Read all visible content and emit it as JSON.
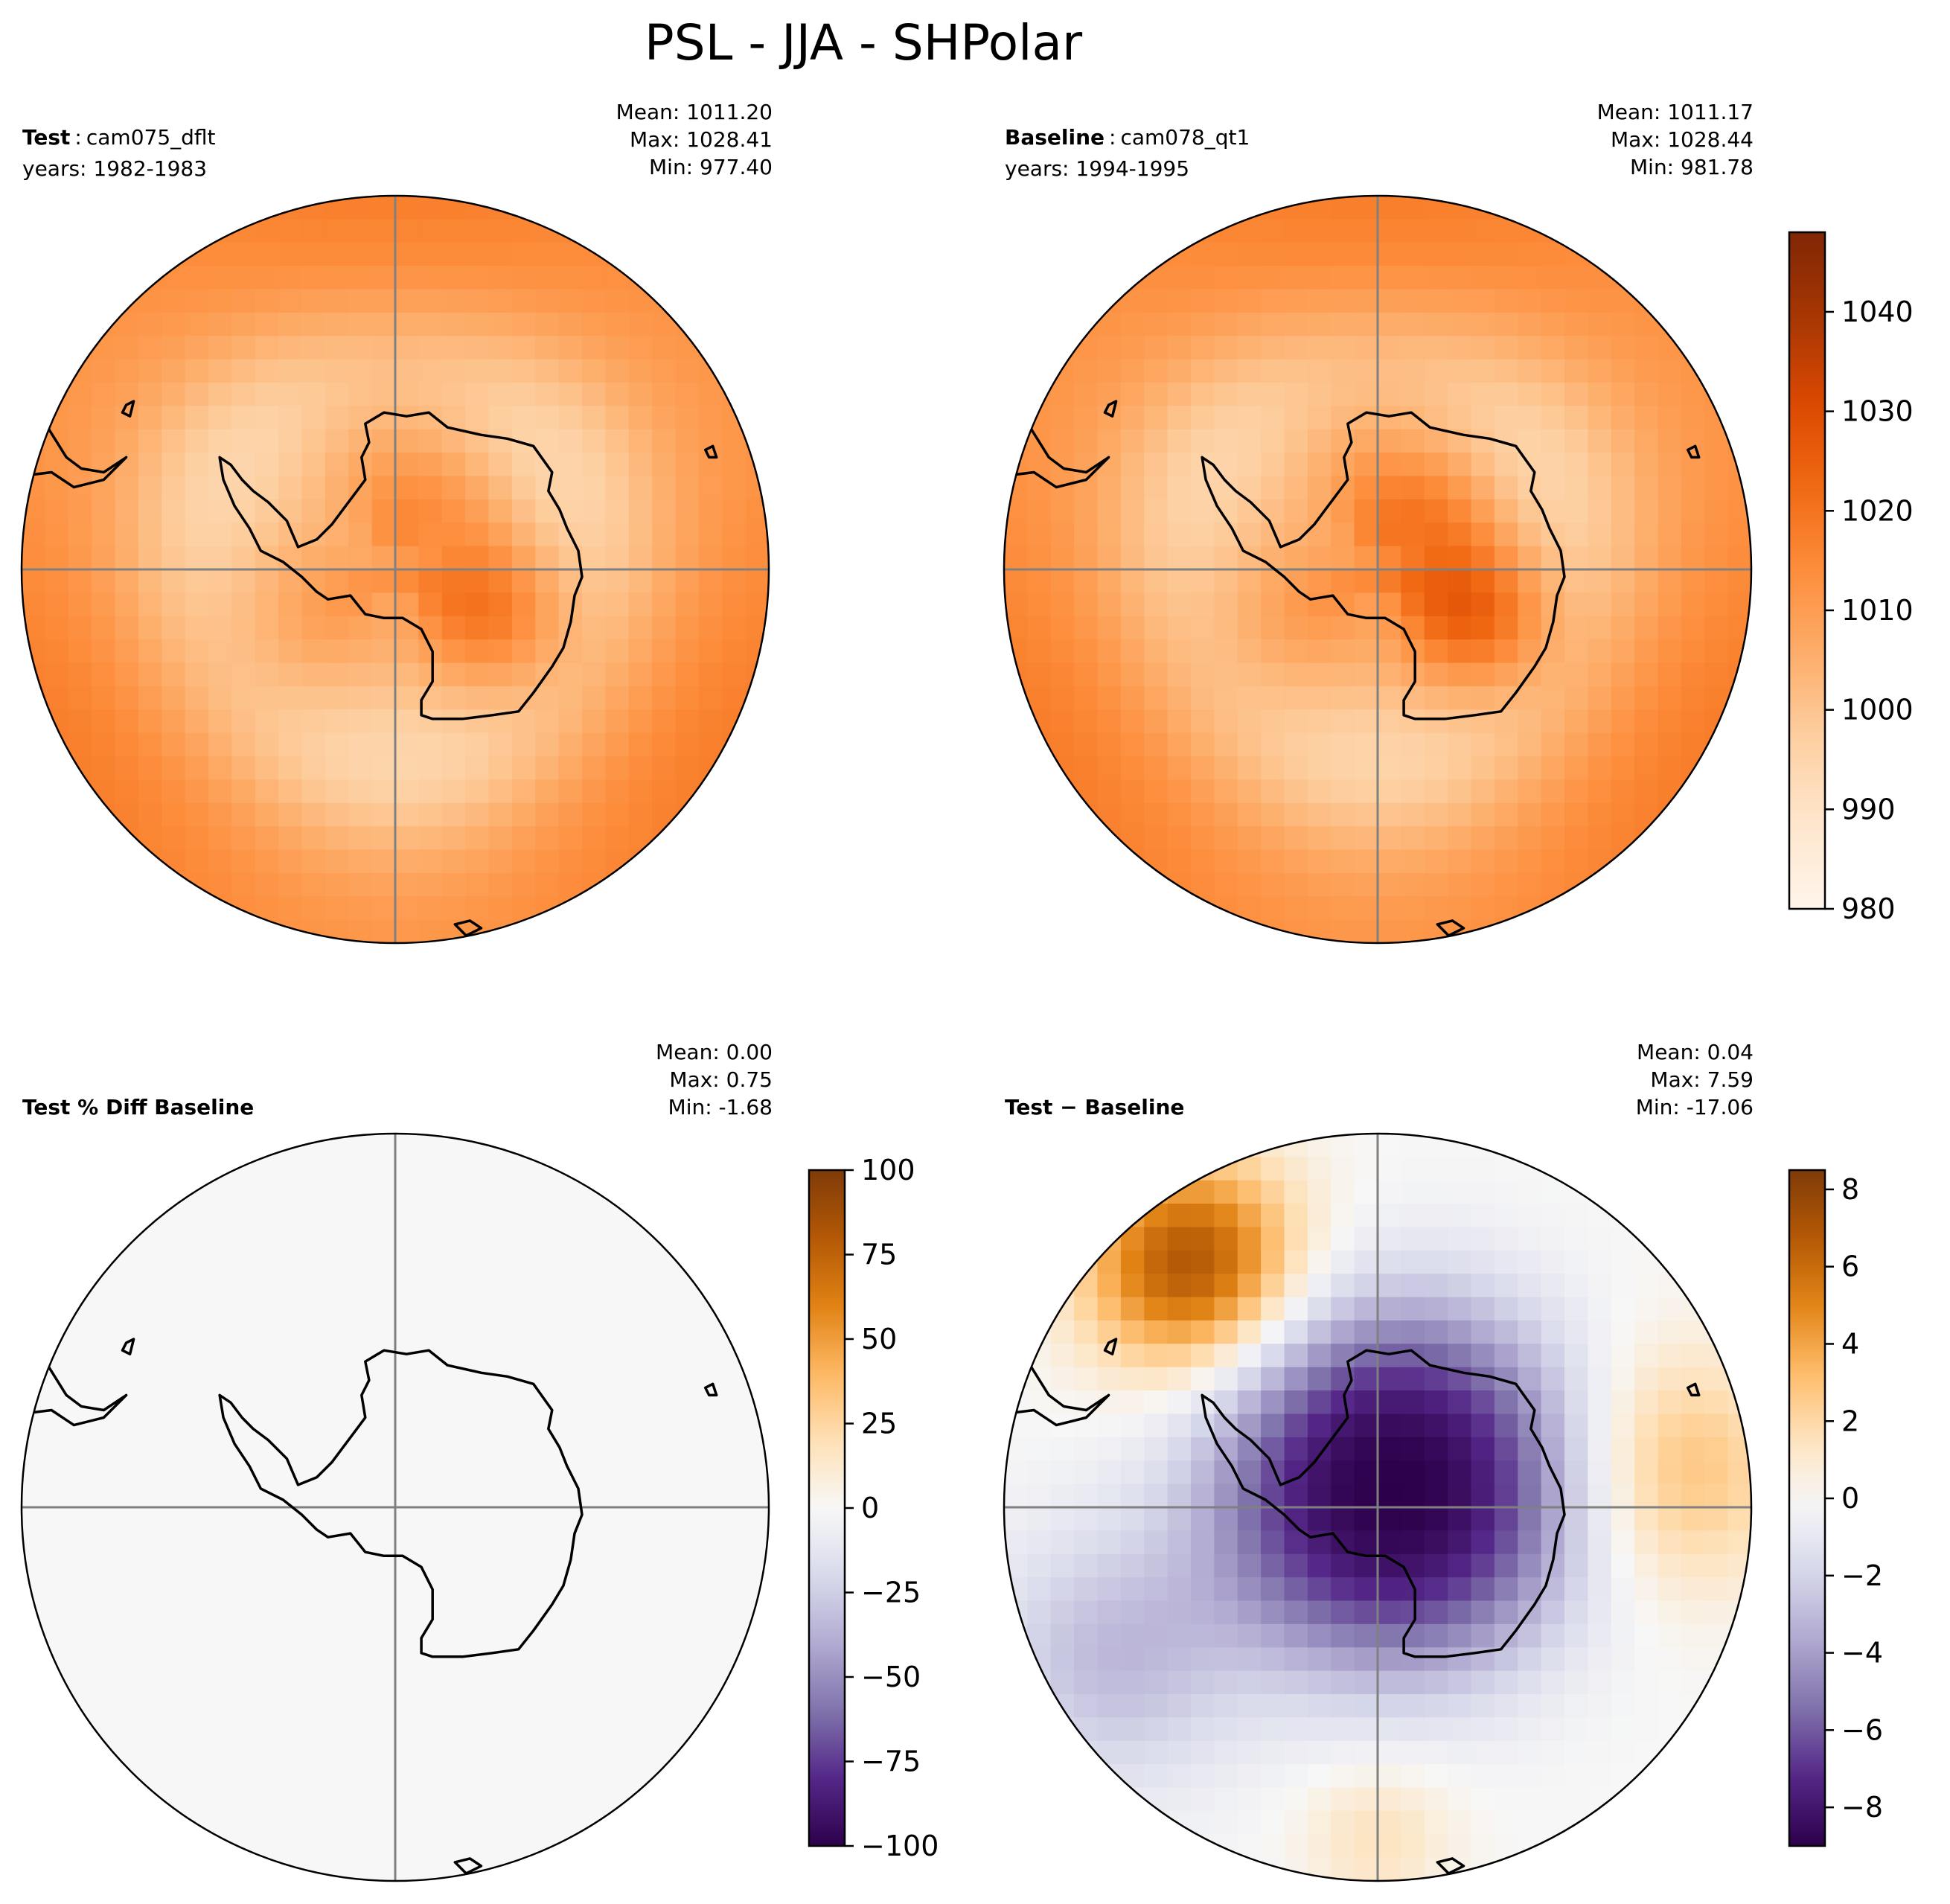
{
  "figure": {
    "title": "PSL - JJA - SHPolar"
  },
  "chart_data": [
    {
      "type": "heatmap",
      "projection": "south-polar-stereographic",
      "panel": "test",
      "label_bold": "Test",
      "case_name": "cam075_dflt",
      "years": "years: 1982-1983",
      "stats": {
        "mean": "Mean: 1011.20",
        "max": "Max: 1028.41",
        "min": "Min: 977.40"
      },
      "colormap": "Oranges",
      "value_range": [
        980,
        1048
      ]
    },
    {
      "type": "heatmap",
      "projection": "south-polar-stereographic",
      "panel": "baseline",
      "label_bold": "Baseline",
      "case_name": "cam078_qt1",
      "years": "years: 1994-1995",
      "stats": {
        "mean": "Mean: 1011.17",
        "max": "Max: 1028.44",
        "min": "Min: 981.78"
      },
      "colormap": "Oranges",
      "value_range": [
        980,
        1048
      ],
      "colorbar": {
        "range": [
          980,
          1048
        ],
        "ticks": [
          "980",
          "990",
          "1000",
          "1010",
          "1020",
          "1030",
          "1040"
        ]
      }
    },
    {
      "type": "heatmap",
      "projection": "south-polar-stereographic",
      "panel": "percent-diff",
      "label_bold": "Test % Diff Baseline",
      "stats": {
        "mean": "Mean:  0.00",
        "max": "Max:  0.75",
        "min": "Min: -1.68"
      },
      "colormap": "PuOr_r",
      "value_range": [
        -100,
        100
      ],
      "colorbar": {
        "range": [
          -100,
          100
        ],
        "ticks": [
          "−100",
          "−75",
          "−50",
          "−25",
          "0",
          "25",
          "50",
          "75",
          "100"
        ]
      }
    },
    {
      "type": "heatmap",
      "projection": "south-polar-stereographic",
      "panel": "difference",
      "label_bold": "Test − Baseline",
      "stats": {
        "mean": "Mean:  0.04",
        "max": "Max:  7.59",
        "min": "Min: -17.06"
      },
      "colormap": "PuOr_r",
      "value_range": [
        -9,
        8.5
      ],
      "colorbar": {
        "range": [
          -9,
          8.5
        ],
        "ticks": [
          "−8",
          "−6",
          "−4",
          "−2",
          "0",
          "2",
          "4",
          "6",
          "8"
        ]
      }
    }
  ],
  "colors": {
    "oranges": [
      "#fff5eb",
      "#fee6ce",
      "#fdd0a2",
      "#fdae6b",
      "#fd8d3c",
      "#f16913",
      "#d94801",
      "#a63603",
      "#7f2704"
    ],
    "puor_r": [
      "#2d004b",
      "#542788",
      "#8073ac",
      "#b2abd2",
      "#d8daeb",
      "#f7f7f7",
      "#fee0b6",
      "#fdb863",
      "#e08214",
      "#b35806",
      "#7f3b08"
    ],
    "gridline": "#808080"
  }
}
